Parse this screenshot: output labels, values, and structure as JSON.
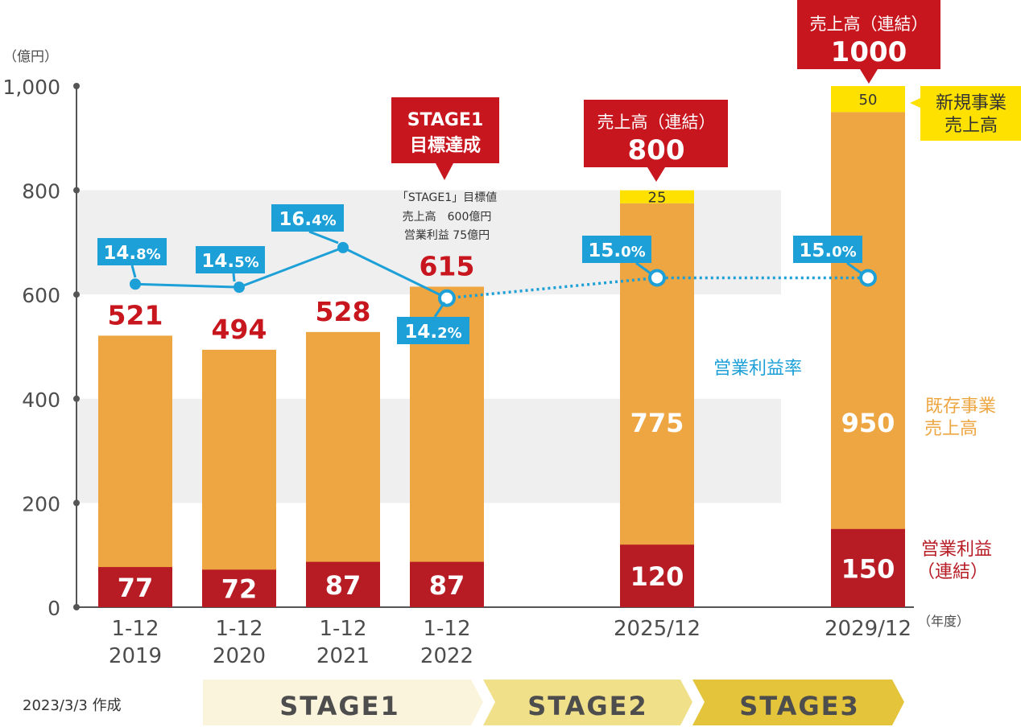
{
  "chart_data": {
    "type": "bar",
    "unit_label": "（億円）",
    "x_unit_label": "（年度）",
    "ylim": [
      0,
      1000
    ],
    "y_ticks": [
      {
        "value": 0,
        "label": "0"
      },
      {
        "value": 200,
        "label": "200"
      },
      {
        "value": 400,
        "label": "400"
      },
      {
        "value": 600,
        "label": "600"
      },
      {
        "value": 800,
        "label": "800"
      },
      {
        "value": 1000,
        "label": "1,000"
      }
    ],
    "categories": [
      {
        "line1": "1-12",
        "line2": "2019"
      },
      {
        "line1": "1-12",
        "line2": "2020"
      },
      {
        "line1": "1-12",
        "line2": "2021"
      },
      {
        "line1": "1-12",
        "line2": "2022"
      },
      {
        "line1": "2025/12",
        "line2": ""
      },
      {
        "line1": "2029/12",
        "line2": ""
      }
    ],
    "series": [
      {
        "name": "営業利益\n（連結）",
        "color": "#b71c25",
        "values": [
          77,
          72,
          87,
          87,
          120,
          150
        ]
      },
      {
        "name": "既存事業\n売上高",
        "color": "#eda642",
        "values": [
          521,
          494,
          528,
          615,
          775,
          950
        ]
      },
      {
        "name": "新規事業\n売上高",
        "color": "#ffe100",
        "values": [
          0,
          0,
          0,
          0,
          25,
          50
        ]
      }
    ],
    "operating_margin": {
      "name": "営業利益率",
      "color": "#1ca0d7",
      "values": [
        14.8,
        14.5,
        16.4,
        14.2,
        15.0,
        15.0
      ],
      "labels": [
        {
          "int": "14.",
          "dec": "8%"
        },
        {
          "int": "14.",
          "dec": "5%"
        },
        {
          "int": "16.",
          "dec": "4%"
        },
        {
          "int": "14.",
          "dec": "2%"
        },
        {
          "int": "15.",
          "dec": "0%"
        },
        {
          "int": "15.",
          "dec": "0%"
        }
      ],
      "axis_values_at": [
        620,
        614,
        690,
        593,
        632,
        632
      ]
    },
    "revenue_labels": [
      "521",
      "494",
      "528",
      "615"
    ],
    "profit_labels": [
      "77",
      "72",
      "87",
      "87",
      "120",
      "150"
    ],
    "existing_labels": [
      "775",
      "950"
    ],
    "new_labels": [
      "25",
      "50"
    ],
    "callouts": {
      "stage1_achieved": {
        "line1": "STAGE1",
        "line2": "目標達成"
      },
      "stage1_target": {
        "line1": "「STAGE1」目標値",
        "line2": "売上高　600億円",
        "line3": "営業利益 75億円"
      },
      "revenue_2025": {
        "title": "売上高（連結）",
        "value": "800"
      },
      "revenue_2029": {
        "title": "売上高（連結）",
        "value": "1000"
      }
    },
    "stages": [
      "STAGE1",
      "STAGE2",
      "STAGE3"
    ],
    "created_note": "2023/3/3 作成"
  }
}
